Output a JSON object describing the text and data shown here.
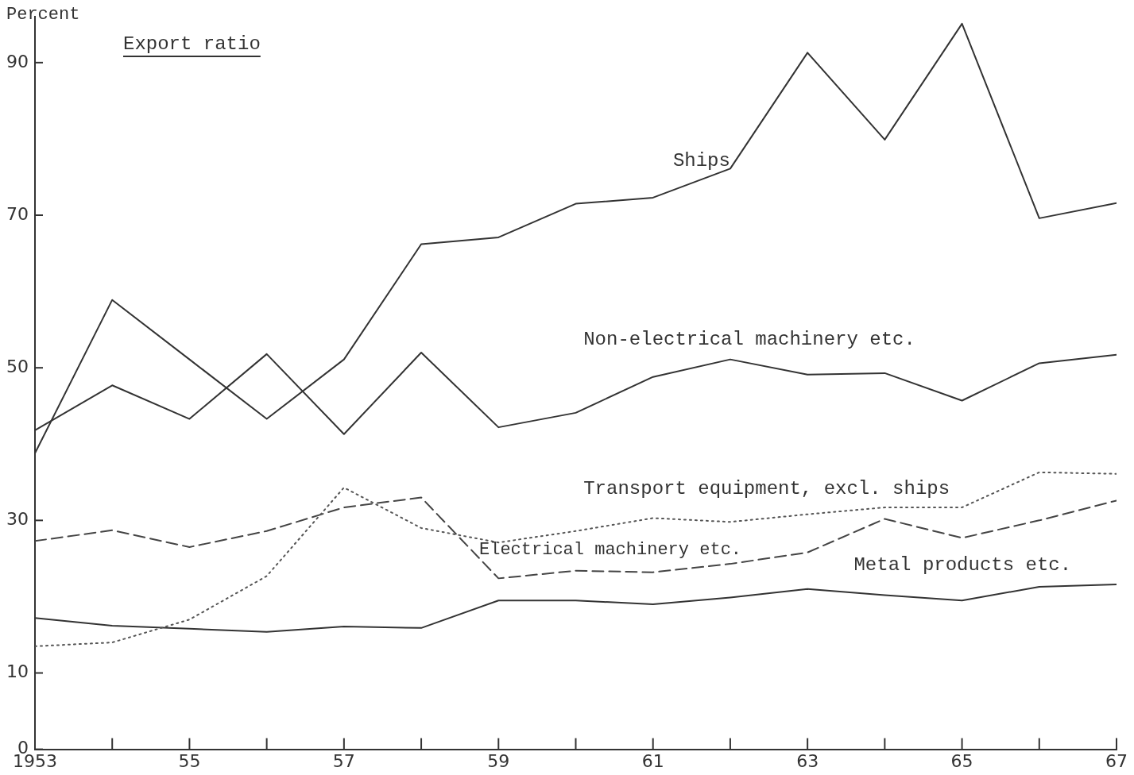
{
  "chart_data": {
    "type": "line",
    "title": "Export ratio",
    "ylabel": "Percent",
    "x": [
      1953,
      1954,
      1955,
      1956,
      1957,
      1958,
      1959,
      1960,
      1961,
      1962,
      1963,
      1964,
      1965,
      1966,
      1967
    ],
    "xlim": [
      1953,
      1967
    ],
    "xticks": [
      {
        "value": 1953,
        "label": "1953"
      },
      {
        "value": 1954,
        "label": null
      },
      {
        "value": 1955,
        "label": "55"
      },
      {
        "value": 1956,
        "label": null
      },
      {
        "value": 1957,
        "label": "57"
      },
      {
        "value": 1958,
        "label": null
      },
      {
        "value": 1959,
        "label": "59"
      },
      {
        "value": 1960,
        "label": null
      },
      {
        "value": 1961,
        "label": "61"
      },
      {
        "value": 1962,
        "label": null
      },
      {
        "value": 1963,
        "label": "63"
      },
      {
        "value": 1964,
        "label": null
      },
      {
        "value": 1965,
        "label": "65"
      },
      {
        "value": 1966,
        "label": null
      },
      {
        "value": 1967,
        "label": "67"
      }
    ],
    "ylim": [
      0,
      96
    ],
    "yticks": [
      0,
      10,
      30,
      50,
      70,
      90
    ],
    "grid": false,
    "legend": false,
    "marker": "none",
    "series": [
      {
        "name": "Ships",
        "color": "#333333",
        "line_style": "solid",
        "values": [
          38.8,
          58.9,
          51.1,
          43.3,
          51.1,
          66.2,
          67.1,
          71.5,
          72.3,
          76.1,
          91.3,
          79.9,
          95.1,
          69.6,
          71.6
        ]
      },
      {
        "name": "Non-electrical machinery etc.",
        "color": "#333333",
        "line_style": "solid",
        "values": [
          41.8,
          47.7,
          43.3,
          51.8,
          41.3,
          52.0,
          42.2,
          44.1,
          48.8,
          51.1,
          49.1,
          49.3,
          45.7,
          50.6,
          51.7
        ]
      },
      {
        "name": "Transport equipment, excl. ships",
        "color": "#555555",
        "line_style": "dotted",
        "values": [
          13.5,
          14.0,
          17.0,
          22.7,
          34.3,
          29.0,
          27.1,
          28.6,
          30.3,
          29.8,
          30.8,
          31.7,
          31.7,
          36.3,
          36.1
        ]
      },
      {
        "name": "Electrical machinery etc.",
        "color": "#444444",
        "line_style": "dashed",
        "values": [
          27.3,
          28.7,
          26.5,
          28.6,
          31.7,
          33.0,
          22.4,
          23.4,
          23.2,
          24.3,
          25.8,
          30.2,
          27.7,
          30.0,
          32.6
        ]
      },
      {
        "name": "Metal products etc.",
        "color": "#333333",
        "line_style": "solid",
        "values": [
          17.2,
          16.2,
          15.8,
          15.4,
          16.1,
          15.9,
          19.5,
          19.5,
          19.0,
          19.9,
          21.0,
          20.2,
          19.5,
          21.3,
          21.6
        ]
      }
    ]
  }
}
